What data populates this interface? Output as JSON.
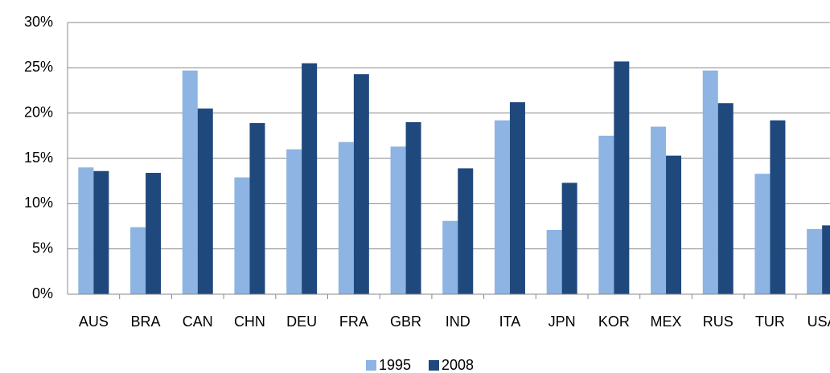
{
  "chart_data": {
    "type": "bar",
    "categories": [
      "AUS",
      "BRA",
      "CAN",
      "CHN",
      "DEU",
      "FRA",
      "GBR",
      "IND",
      "ITA",
      "JPN",
      "KOR",
      "MEX",
      "RUS",
      "TUR",
      "USA"
    ],
    "series": [
      {
        "name": "1995",
        "color": "#8db4e2",
        "values": [
          14.0,
          7.4,
          24.7,
          12.9,
          16.0,
          16.8,
          16.3,
          8.1,
          19.2,
          7.1,
          17.5,
          18.5,
          24.7,
          13.3,
          7.2
        ]
      },
      {
        "name": "2008",
        "color": "#1f497d",
        "values": [
          13.6,
          13.4,
          20.5,
          18.9,
          25.5,
          24.3,
          19.0,
          13.9,
          21.2,
          12.3,
          25.7,
          15.3,
          21.1,
          19.2,
          7.6
        ]
      }
    ],
    "ylim": [
      0,
      30
    ],
    "yticks": [
      {
        "value": 0,
        "label": "0%"
      },
      {
        "value": 5,
        "label": "5%"
      },
      {
        "value": 10,
        "label": "10%"
      },
      {
        "value": 15,
        "label": "15%"
      },
      {
        "value": 20,
        "label": "20%"
      },
      {
        "value": 25,
        "label": "25%"
      },
      {
        "value": 30,
        "label": "30%"
      }
    ],
    "grid": true,
    "legend": "bottom"
  }
}
